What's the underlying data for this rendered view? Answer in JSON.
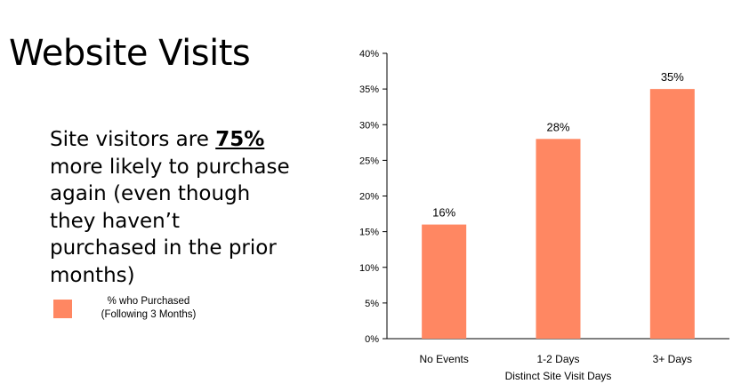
{
  "title": "Website Visits",
  "statement": {
    "prefix": "Site visitors are ",
    "highlight": "75%",
    "suffix": " more likely to purchase again (even though they haven’t purchased in the prior months)"
  },
  "legend": {
    "line1": "% who Purchased",
    "line2": "(Following 3 Months)",
    "color": "#FF8762"
  },
  "chart_data": {
    "type": "bar",
    "categories": [
      "No Events",
      "1-2 Days",
      "3+ Days"
    ],
    "series": [
      {
        "name": "% who Purchased (Following 3 Months)",
        "values": [
          16,
          28,
          35
        ]
      }
    ],
    "data_labels": [
      "16%",
      "28%",
      "35%"
    ],
    "xlabel": "Distinct Site Visit Days",
    "ylabel": "",
    "ylim": [
      0,
      40
    ],
    "yticks": [
      0,
      5,
      10,
      15,
      20,
      25,
      30,
      35,
      40
    ],
    "ytick_labels": [
      "0%",
      "5%",
      "10%",
      "15%",
      "20%",
      "25%",
      "30%",
      "35%",
      "40%"
    ],
    "grid": false,
    "legend_position": "left",
    "bar_color": "#FF8762"
  }
}
